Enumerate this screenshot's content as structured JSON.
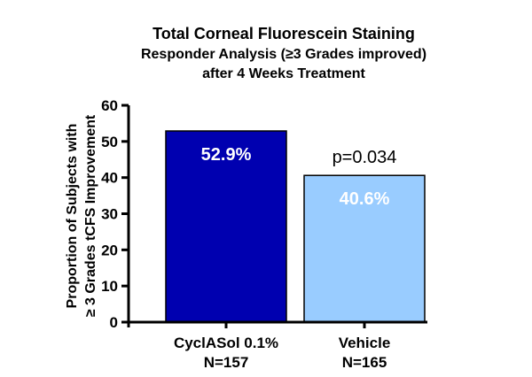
{
  "chart_data": {
    "type": "bar",
    "title": "Total Corneal Fluorescein Staining",
    "subtitle_lines": [
      "Responder Analysis (≥3 Grades improved)",
      "after 4 Weeks Treatment"
    ],
    "ylabel_lines": [
      "Proportion of Subjects with",
      "≥ 3 Grades tCFS Improvement"
    ],
    "xlabel": "",
    "categories": [
      {
        "name": "CyclASol 0.1%",
        "n": "N=157"
      },
      {
        "name": "Vehicle",
        "n": "N=165"
      }
    ],
    "values": [
      52.9,
      40.6
    ],
    "data_labels": [
      "52.9%",
      "40.6%"
    ],
    "bar_colors": [
      "#0000b0",
      "#99ccff"
    ],
    "ylim": [
      0,
      60
    ],
    "yticks": [
      0,
      10,
      20,
      30,
      40,
      50,
      60
    ],
    "grid": false,
    "annotations": [
      {
        "text": "p=0.034",
        "near_category": 1
      }
    ]
  }
}
